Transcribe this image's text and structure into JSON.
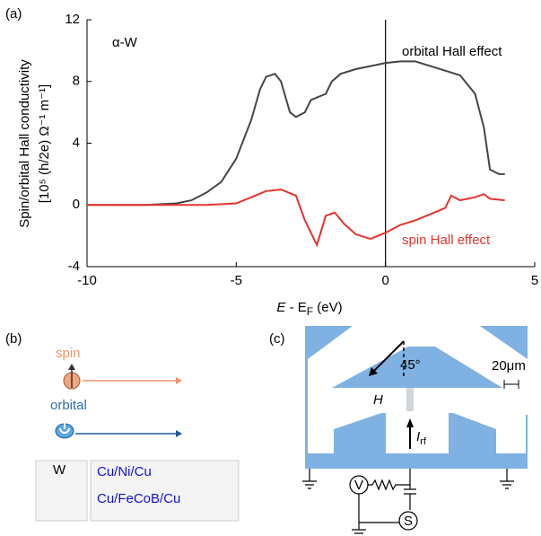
{
  "chart_data": {
    "type": "line",
    "panel_label": "(a)",
    "annotations": [
      "α-W",
      "orbital Hall effect",
      "spin Hall effect"
    ],
    "y_label": [
      "Spin/orbital Hall conductivity",
      "[10⁵ (h/2e) Ω⁻¹ m⁻¹]"
    ],
    "x_label": [
      "E",
      " - E",
      "F",
      " (eV)"
    ],
    "xlim": [
      -10,
      5
    ],
    "ylim": [
      -4,
      12
    ],
    "xticks": [
      -10,
      -5,
      0,
      5
    ],
    "yticks": [
      -4,
      0,
      4,
      8,
      12
    ],
    "vline_x": 0,
    "series": [
      {
        "name": "orbital Hall effect",
        "color": "#454545",
        "x": [
          -10,
          -9,
          -8,
          -7,
          -6.5,
          -6,
          -5.5,
          -5,
          -4.5,
          -4.2,
          -4,
          -3.7,
          -3.5,
          -3.2,
          -3,
          -2.7,
          -2.5,
          -2,
          -1.8,
          -1.5,
          -1,
          -0.5,
          0,
          0.5,
          1,
          1.5,
          2,
          2.5,
          3,
          3.3,
          3.5,
          3.8,
          4
        ],
        "values": [
          0,
          0,
          0,
          0.1,
          0.3,
          0.8,
          1.5,
          3,
          5.5,
          7.5,
          8.3,
          8.5,
          8.0,
          6.0,
          5.7,
          6.0,
          6.8,
          7.2,
          8.0,
          8.5,
          8.8,
          9.0,
          9.2,
          9.3,
          9.3,
          9.0,
          8.7,
          8.4,
          7.2,
          5.0,
          2.3,
          2.0,
          2.0
        ]
      },
      {
        "name": "spin Hall effect",
        "color": "#e8322d",
        "x": [
          -10,
          -6,
          -5,
          -4.5,
          -4,
          -3.5,
          -3,
          -2.7,
          -2.3,
          -2,
          -1.7,
          -1.4,
          -1,
          -0.5,
          0,
          0.5,
          1,
          1.5,
          2,
          2.2,
          2.5,
          3,
          3.3,
          3.5,
          4
        ],
        "values": [
          0,
          0,
          0.1,
          0.5,
          0.9,
          1.0,
          0.6,
          -1.0,
          -2.6,
          -0.7,
          -0.5,
          -1.2,
          -1.9,
          -2.2,
          -1.8,
          -1.3,
          -1.0,
          -0.6,
          -0.2,
          0.6,
          0.3,
          0.5,
          0.7,
          0.4,
          0.3
        ]
      }
    ]
  },
  "panel_b": {
    "label": "(b)",
    "spin": "spin",
    "orbital": "orbital",
    "table": [
      "W",
      "Cu/Ni/Cu",
      "Cu/FeCoB/Cu"
    ]
  },
  "panel_c": {
    "label": "(c)",
    "angle": "45°",
    "field": "H",
    "scale": "20μm",
    "current": [
      "I",
      "rf"
    ],
    "voltmeter": "V",
    "source": "S"
  }
}
